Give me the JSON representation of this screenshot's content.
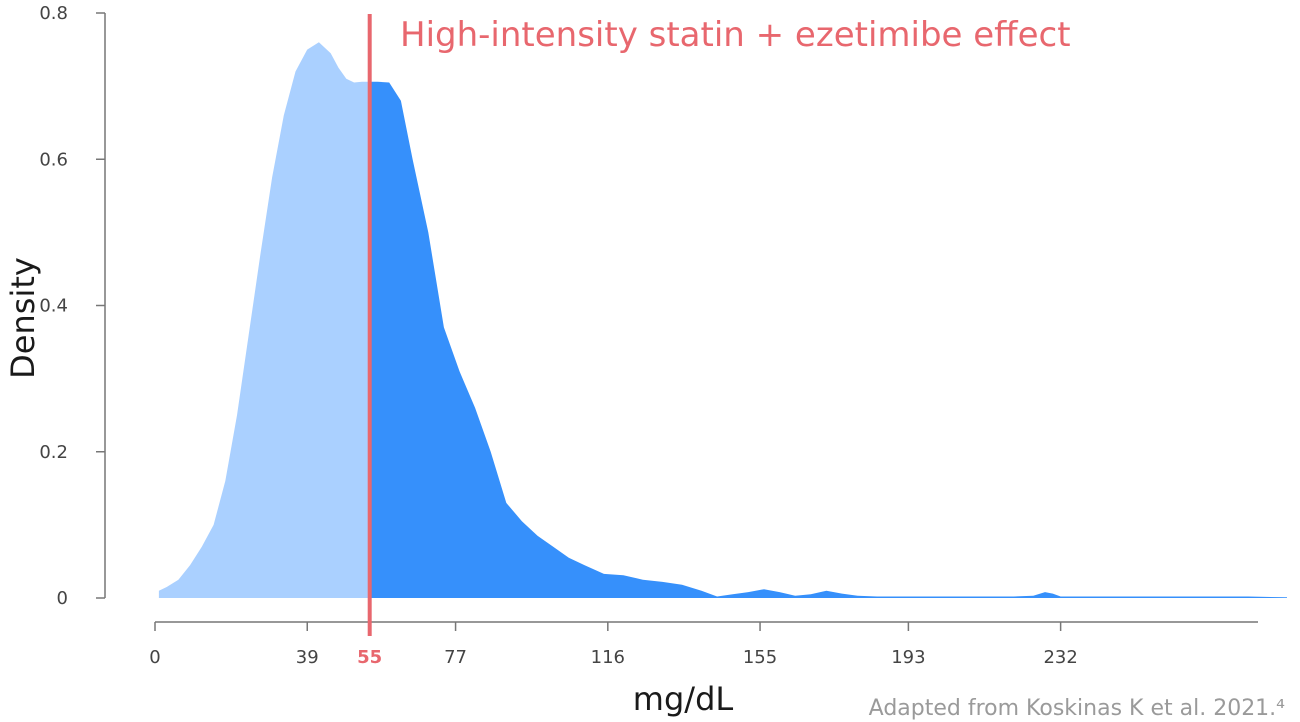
{
  "chart_data": {
    "type": "area",
    "title": "",
    "xlabel": "mg/dL",
    "ylabel": "Density",
    "xlim": [
      0,
      280
    ],
    "ylim": [
      0,
      0.8
    ],
    "x_ticks": [
      0,
      39,
      77,
      116,
      155,
      193,
      232
    ],
    "y_ticks": [
      {
        "value": 0,
        "label": "0"
      },
      {
        "value": 0.2,
        "label": "0.2"
      },
      {
        "value": 0.4,
        "label": "0.4"
      },
      {
        "value": 0.6,
        "label": "0.6"
      },
      {
        "value": 0.8,
        "label": "0.8"
      }
    ],
    "reference_line": {
      "x": 55,
      "tick_label": "55",
      "label": "High-intensity statin + ezetimibe effect",
      "color": "#e8676e"
    },
    "colors": {
      "below_threshold": "#aad0ff",
      "above_threshold": "#3690fb",
      "axis": "#777777"
    },
    "series": [
      {
        "x": [
          1,
          3,
          6,
          9,
          12,
          15,
          18,
          21,
          24,
          27,
          30,
          33,
          36,
          39,
          42,
          45,
          47,
          49,
          51,
          53,
          55,
          57,
          60,
          63,
          66,
          70,
          74,
          78,
          82,
          86,
          90,
          94,
          98,
          102,
          106,
          110,
          115,
          120,
          125,
          130,
          135,
          140,
          144,
          148,
          152,
          156,
          160,
          164,
          168,
          172,
          176,
          180,
          185,
          190,
          195,
          200,
          205,
          210,
          215,
          220,
          225,
          228,
          230,
          232,
          235,
          240,
          250,
          260,
          270,
          280,
          290
        ],
        "y": [
          0.01,
          0.015,
          0.025,
          0.045,
          0.07,
          0.1,
          0.16,
          0.25,
          0.36,
          0.47,
          0.575,
          0.66,
          0.72,
          0.75,
          0.76,
          0.745,
          0.725,
          0.71,
          0.705,
          0.706,
          0.706,
          0.706,
          0.705,
          0.68,
          0.6,
          0.5,
          0.37,
          0.31,
          0.26,
          0.2,
          0.13,
          0.105,
          0.085,
          0.07,
          0.055,
          0.045,
          0.033,
          0.031,
          0.025,
          0.022,
          0.018,
          0.01,
          0.002,
          0.005,
          0.008,
          0.012,
          0.008,
          0.003,
          0.005,
          0.01,
          0.006,
          0.003,
          0.002,
          0.002,
          0.002,
          0.002,
          0.002,
          0.002,
          0.002,
          0.002,
          0.003,
          0.008,
          0.006,
          0.002,
          0.002,
          0.002,
          0.002,
          0.002,
          0.002,
          0.002,
          0.001
        ]
      }
    ]
  },
  "source_note": "Adapted from Koskinas K et al. 2021.⁴"
}
